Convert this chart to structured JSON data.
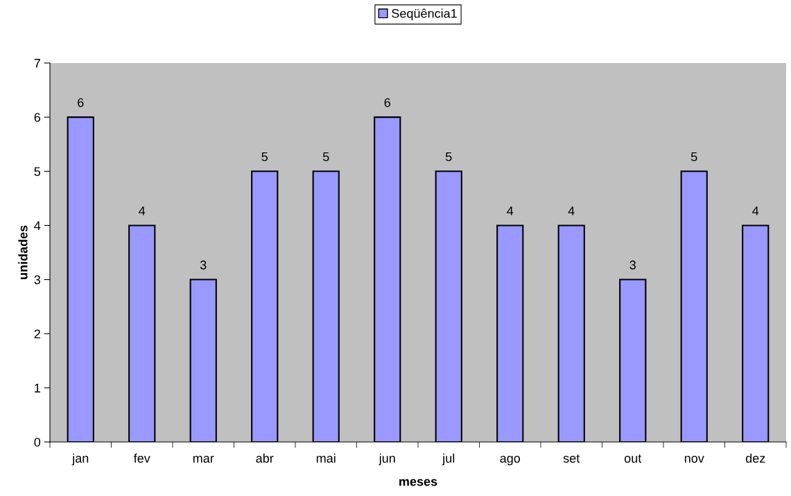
{
  "chart_data": {
    "type": "bar",
    "xlabel": "meses",
    "ylabel": "unidades",
    "categories": [
      "jan",
      "fev",
      "mar",
      "abr",
      "mai",
      "jun",
      "jul",
      "ago",
      "set",
      "out",
      "nov",
      "dez"
    ],
    "series": [
      {
        "name": "Seqüência1",
        "color": "#9999ff",
        "values": [
          6,
          4,
          3,
          5,
          5,
          6,
          5,
          4,
          4,
          3,
          5,
          4
        ]
      }
    ],
    "ylim": [
      0,
      7
    ],
    "yticks": [
      0,
      1,
      2,
      3,
      4,
      5,
      6,
      7
    ],
    "data_labels": true,
    "legend": "top"
  }
}
